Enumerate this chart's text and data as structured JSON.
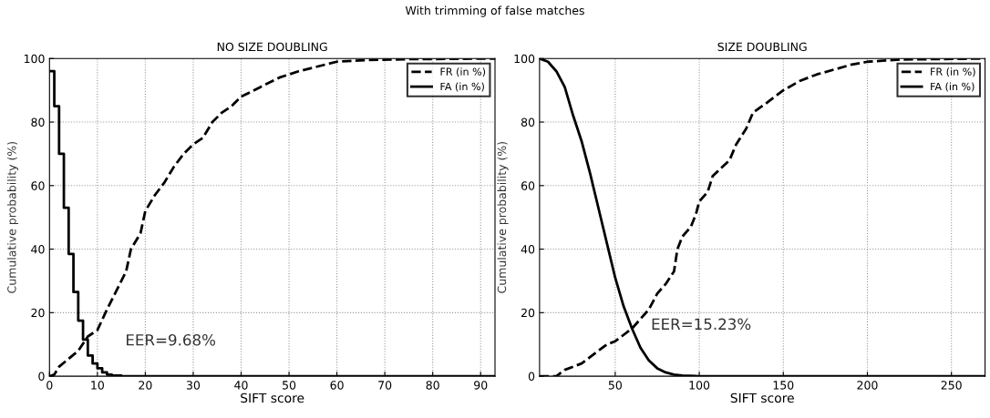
{
  "chart_data": [
    {
      "type": "line",
      "title": "NO SIZE DOUBLING",
      "xlabel": "SIFT score",
      "ylabel": "Cumulative probability (%)",
      "xlim": [
        0,
        93
      ],
      "xticks": [
        0,
        10,
        20,
        30,
        40,
        50,
        60,
        70,
        80,
        90
      ],
      "ylim": [
        0,
        100
      ],
      "yticks": [
        0,
        20,
        40,
        60,
        80,
        100
      ],
      "grid": true,
      "legend": "top right",
      "annotations": [
        "With trimming of false matches",
        "EER=9.68%"
      ],
      "series": [
        {
          "name": "FR (in %)",
          "color": "#000000",
          "line_style": "dashed",
          "x": [
            0,
            1,
            2,
            4,
            6,
            8,
            10,
            12,
            14,
            16,
            17,
            19,
            20,
            22,
            24,
            26,
            28,
            30,
            32,
            34,
            36,
            38,
            40,
            44,
            48,
            52,
            56,
            60,
            66,
            75,
            93
          ],
          "values": [
            0,
            0.5,
            3,
            5.5,
            8,
            12.5,
            14.5,
            21,
            27,
            33,
            40,
            45,
            52,
            57,
            61,
            66,
            70,
            73,
            75,
            80,
            83,
            85,
            88,
            91,
            94,
            96,
            97.5,
            99,
            99.5,
            99.8,
            100
          ]
        },
        {
          "name": "FA (in %)",
          "color": "#000000",
          "line_style": "solid",
          "type": "step",
          "x": [
            0,
            1,
            2,
            3,
            4,
            5,
            6,
            7,
            8,
            9,
            10,
            11,
            12,
            13,
            15,
            93
          ],
          "values": [
            96,
            85,
            70,
            53,
            38.5,
            26.5,
            17.5,
            11.5,
            6.5,
            4,
            2.5,
            1.2,
            0.5,
            0.2,
            0,
            0
          ]
        }
      ]
    },
    {
      "type": "line",
      "title": "SIZE DOUBLING",
      "xlabel": "SIFT score",
      "ylabel": "Cumulative probability (%)",
      "xlim": [
        5,
        270
      ],
      "xticks": [
        50,
        100,
        150,
        200,
        250
      ],
      "ylim": [
        0,
        100
      ],
      "yticks": [
        0,
        20,
        40,
        60,
        80,
        100
      ],
      "grid": true,
      "legend": "top right",
      "annotations": [
        "EER=15.23%"
      ],
      "series": [
        {
          "name": "FR (in %)",
          "color": "#000000",
          "line_style": "dashed",
          "x": [
            5,
            15,
            20,
            25,
            30,
            35,
            40,
            45,
            50,
            55,
            60,
            65,
            70,
            75,
            80,
            85,
            87,
            90,
            95,
            98,
            100,
            105,
            108,
            112,
            118,
            122,
            128,
            132,
            140,
            150,
            160,
            170,
            180,
            190,
            200,
            220,
            270
          ],
          "values": [
            0,
            0,
            2,
            3,
            4,
            6,
            8,
            10,
            11,
            13,
            15,
            18,
            21,
            26,
            29,
            33,
            40,
            44,
            47,
            51,
            55,
            58,
            63,
            65,
            68,
            73,
            78,
            83,
            86,
            90,
            93,
            95,
            96.5,
            98,
            99,
            99.7,
            100
          ]
        },
        {
          "name": "FA (in %)",
          "color": "#000000",
          "line_style": "solid",
          "x": [
            5,
            10,
            15,
            20,
            25,
            30,
            35,
            40,
            45,
            50,
            55,
            60,
            65,
            70,
            75,
            80,
            85,
            90,
            100,
            270
          ],
          "values": [
            100,
            99,
            96,
            91,
            82,
            74,
            64,
            53,
            42,
            31,
            22,
            15,
            9,
            5,
            2.5,
            1.2,
            0.5,
            0.2,
            0,
            0
          ]
        }
      ]
    }
  ]
}
